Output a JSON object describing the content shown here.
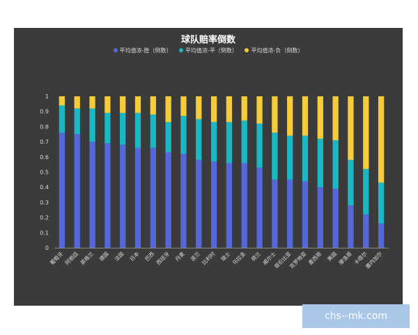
{
  "chart_data": {
    "type": "bar",
    "stacked": true,
    "title": "球队赔率倒数",
    "categories": [
      "葡萄牙",
      "阿根廷",
      "英格兰",
      "德国",
      "法国",
      "日本",
      "巴西",
      "西班牙",
      "丹麦",
      "波兰",
      "比利时",
      "瑞士",
      "乌拉圭",
      "荷兰",
      "威尔士",
      "哥伦比亚",
      "克罗地亚",
      "墨西哥",
      "美国",
      "摩洛哥",
      "卡塔尔",
      "塞内加尔"
    ],
    "series": [
      {
        "name": "平均值浓-胜（倒数）",
        "color": "#5468d9",
        "values": [
          0.76,
          0.75,
          0.7,
          0.69,
          0.68,
          0.66,
          0.66,
          0.63,
          0.62,
          0.58,
          0.57,
          0.56,
          0.56,
          0.53,
          0.45,
          0.45,
          0.44,
          0.4,
          0.39,
          0.28,
          0.22,
          0.16
        ]
      },
      {
        "name": "平均值浓-平（倒数）",
        "color": "#19b8c4",
        "values": [
          0.18,
          0.17,
          0.22,
          0.2,
          0.21,
          0.23,
          0.22,
          0.2,
          0.25,
          0.27,
          0.26,
          0.27,
          0.28,
          0.29,
          0.31,
          0.29,
          0.3,
          0.32,
          0.32,
          0.3,
          0.3,
          0.27
        ]
      },
      {
        "name": "平均值浓-负（倒数）",
        "color": "#f6cc3a",
        "values": [
          0.06,
          0.08,
          0.08,
          0.11,
          0.11,
          0.11,
          0.12,
          0.17,
          0.13,
          0.15,
          0.17,
          0.17,
          0.16,
          0.18,
          0.24,
          0.26,
          0.26,
          0.28,
          0.29,
          0.42,
          0.48,
          0.57
        ]
      }
    ],
    "ylim": [
      0,
      1
    ],
    "yticks": [
      "0",
      "0.1",
      "0.2",
      "0.3",
      "0.4",
      "0.5",
      "0.6",
      "0.7",
      "0.8",
      "0.9",
      "1"
    ],
    "legend_position": "top"
  },
  "watermark": "chs--mk.com"
}
